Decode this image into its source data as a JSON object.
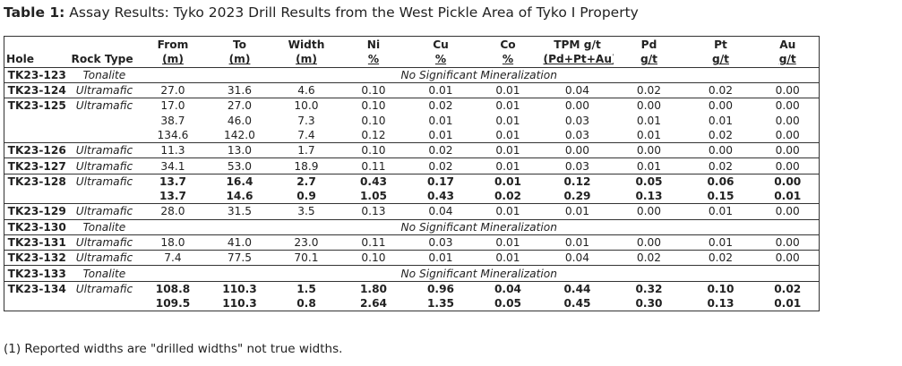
{
  "title": {
    "prefix": "Table 1:",
    "text": "Assay Results: Tyko 2023 Drill Results from the West Pickle Area of Tyko I Property"
  },
  "headers": {
    "row1": [
      "",
      "",
      "From",
      "To",
      "Width",
      "Ni",
      "Cu",
      "Co",
      "TPM g/t",
      "Pd",
      "Pt",
      "Au"
    ],
    "row2": [
      "Hole",
      "Rock Type",
      "(m)",
      "(m)",
      "(m)",
      "%",
      "%",
      "%",
      "(Pd+Pt+Au)",
      "g/t",
      "g/t",
      "g/t"
    ]
  },
  "groups": [
    {
      "hole": "TK23-123",
      "rock": "Tonalite",
      "nsm": "No Significant Mineralization",
      "rows": []
    },
    {
      "hole": "TK23-124",
      "rock": "Ultramafic",
      "rows": [
        {
          "bold": false,
          "v": [
            "27.0",
            "31.6",
            "4.6",
            "0.10",
            "0.01",
            "0.01",
            "0.04",
            "0.02",
            "0.02",
            "0.00"
          ]
        }
      ]
    },
    {
      "hole": "TK23-125",
      "rock": "Ultramafic",
      "rows": [
        {
          "bold": false,
          "v": [
            "17.0",
            "27.0",
            "10.0",
            "0.10",
            "0.02",
            "0.01",
            "0.00",
            "0.00",
            "0.00",
            "0.00"
          ]
        },
        {
          "bold": false,
          "v": [
            "38.7",
            "46.0",
            "7.3",
            "0.10",
            "0.01",
            "0.01",
            "0.03",
            "0.01",
            "0.01",
            "0.00"
          ]
        },
        {
          "bold": false,
          "v": [
            "134.6",
            "142.0",
            "7.4",
            "0.12",
            "0.01",
            "0.01",
            "0.03",
            "0.01",
            "0.02",
            "0.00"
          ]
        }
      ]
    },
    {
      "hole": "TK23-126",
      "rock": "Ultramafic",
      "rows": [
        {
          "bold": false,
          "v": [
            "11.3",
            "13.0",
            "1.7",
            "0.10",
            "0.02",
            "0.01",
            "0.00",
            "0.00",
            "0.00",
            "0.00"
          ]
        }
      ]
    },
    {
      "hole": "TK23-127",
      "rock": "Ultramafic",
      "rows": [
        {
          "bold": false,
          "v": [
            "34.1",
            "53.0",
            "18.9",
            "0.11",
            "0.02",
            "0.01",
            "0.03",
            "0.01",
            "0.02",
            "0.00"
          ]
        }
      ]
    },
    {
      "hole": "TK23-128",
      "rock": "Ultramafic",
      "rows": [
        {
          "bold": true,
          "v": [
            "13.7",
            "16.4",
            "2.7",
            "0.43",
            "0.17",
            "0.01",
            "0.12",
            "0.05",
            "0.06",
            "0.00"
          ]
        },
        {
          "bold": true,
          "v": [
            "13.7",
            "14.6",
            "0.9",
            "1.05",
            "0.43",
            "0.02",
            "0.29",
            "0.13",
            "0.15",
            "0.01"
          ]
        }
      ]
    },
    {
      "hole": "TK23-129",
      "rock": "Ultramafic",
      "rows": [
        {
          "bold": false,
          "v": [
            "28.0",
            "31.5",
            "3.5",
            "0.13",
            "0.04",
            "0.01",
            "0.01",
            "0.00",
            "0.01",
            "0.00"
          ]
        }
      ]
    },
    {
      "hole": "TK23-130",
      "rock": "Tonalite",
      "nsm": "No Significant Mineralization",
      "rows": []
    },
    {
      "hole": "TK23-131",
      "rock": "Ultramafic",
      "rows": [
        {
          "bold": false,
          "v": [
            "18.0",
            "41.0",
            "23.0",
            "0.11",
            "0.03",
            "0.01",
            "0.01",
            "0.00",
            "0.01",
            "0.00"
          ]
        }
      ]
    },
    {
      "hole": "TK23-132",
      "rock": "Ultramafic",
      "rows": [
        {
          "bold": false,
          "v": [
            "7.4",
            "77.5",
            "70.1",
            "0.10",
            "0.01",
            "0.01",
            "0.04",
            "0.02",
            "0.02",
            "0.00"
          ]
        }
      ]
    },
    {
      "hole": "TK23-133",
      "rock": "Tonalite",
      "nsm": "No Significant Mineralization",
      "rows": []
    },
    {
      "hole": "TK23-134",
      "rock": "Ultramafic",
      "rows": [
        {
          "bold": true,
          "v": [
            "108.8",
            "110.3",
            "1.5",
            "1.80",
            "0.96",
            "0.04",
            "0.44",
            "0.32",
            "0.10",
            "0.02"
          ]
        },
        {
          "bold": true,
          "v": [
            "109.5",
            "110.3",
            "0.8",
            "2.64",
            "1.35",
            "0.05",
            "0.45",
            "0.30",
            "0.13",
            "0.01"
          ]
        }
      ]
    }
  ],
  "footnote": "(1) Reported widths are \"drilled widths\" not true widths."
}
